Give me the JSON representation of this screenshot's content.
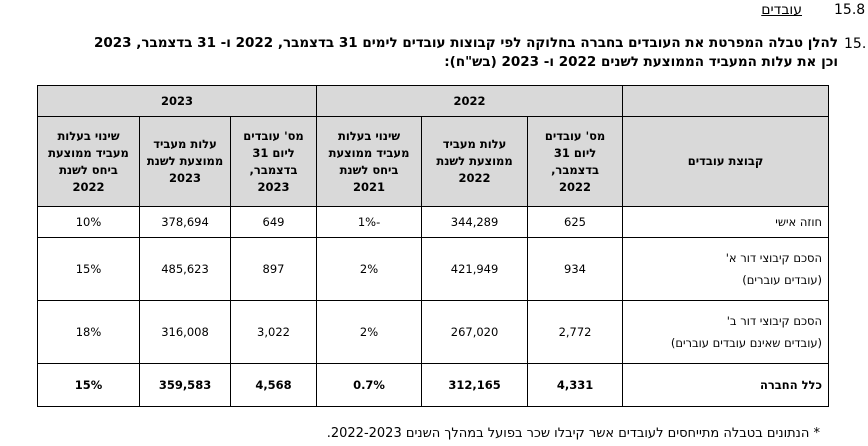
{
  "section": {
    "number": "15.8",
    "title": "עובדים"
  },
  "item_number": "15.",
  "intro_lines": [
    "להלן טבלה המפרטת את העובדים בחברה בחלוקה לפי קבוצות עובדים לימים 31 בדצמבר, 2022 ו- 31 בדצמבר, 2023",
    "וכן את עלות המעביד הממוצעת לשנים 2022 ו- 2023 (בש\"ח):"
  ],
  "table": {
    "years": [
      "2022",
      "2023"
    ],
    "group_header": "קבוצת עובדים",
    "column_headers": [
      "מס' עובדים ליום 31 בדצמבר, 2022",
      "עלות מעביד ממוצעת לשנת 2022",
      "שינוי בעלות מעביד ממוצעת ביחס לשנת 2021",
      "מס' עובדים ליום 31 בדצמבר, 2023",
      "עלות מעביד ממוצעת לשנת 2023",
      "שינוי בעלות מעביד ממוצעת ביחס לשנת 2022"
    ],
    "rows": [
      {
        "name": [
          "חוזה אישי"
        ],
        "cells": [
          "625",
          "344,289",
          "-1%",
          "649",
          "378,694",
          "10%"
        ]
      },
      {
        "name": [
          "הסכם קיבוצי דור א'",
          "(עובדים עוברים)"
        ],
        "cells": [
          "934",
          "421,949",
          "2%",
          "897",
          "485,623",
          "15%"
        ]
      },
      {
        "name": [
          "הסכם קיבוצי דור ב'",
          "(עובדים שאינם עובדים עוברים)"
        ],
        "cells": [
          "2,772",
          "267,020",
          "2%",
          "3,022",
          "316,008",
          "18%"
        ]
      },
      {
        "name": [
          "כלל החברה"
        ],
        "cells": [
          "4,331",
          "312,165",
          "0.7%",
          "4,568",
          "359,583",
          "15%"
        ]
      }
    ]
  },
  "footnote": "* הנתונים בטבלה מתייחסים לעובדים אשר קיבלו שכר בפועל במהלך השנים 2022-2023."
}
